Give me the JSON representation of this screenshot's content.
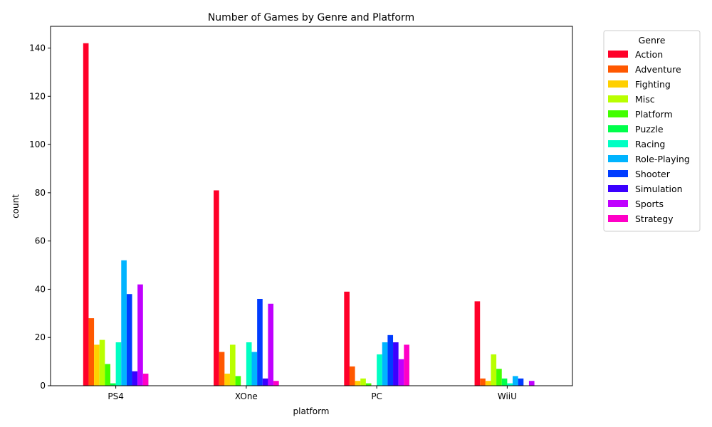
{
  "chart_data": {
    "type": "bar",
    "title": "Number of Games by Genre and Platform",
    "xlabel": "platform",
    "ylabel": "count",
    "categories": [
      "PS4",
      "XOne",
      "PC",
      "WiiU"
    ],
    "ylim": [
      0,
      149
    ],
    "yticks": [
      0,
      20,
      40,
      60,
      80,
      100,
      120,
      140
    ],
    "legend": {
      "title": "Genre",
      "position": "outside-top-right"
    },
    "series": [
      {
        "name": "Action",
        "color": "#ff0029",
        "values": [
          142,
          81,
          39,
          35
        ]
      },
      {
        "name": "Adventure",
        "color": "#ff5800",
        "values": [
          28,
          14,
          8,
          3
        ]
      },
      {
        "name": "Fighting",
        "color": "#ffd000",
        "values": [
          17,
          5,
          2,
          2
        ]
      },
      {
        "name": "Misc",
        "color": "#b9ff00",
        "values": [
          19,
          17,
          3,
          13
        ]
      },
      {
        "name": "Platform",
        "color": "#41ff00",
        "values": [
          9,
          4,
          1,
          7
        ]
      },
      {
        "name": "Puzzle",
        "color": "#00ff4b",
        "values": [
          1,
          0,
          0,
          3
        ]
      },
      {
        "name": "Racing",
        "color": "#00ffc3",
        "values": [
          18,
          18,
          13,
          1
        ]
      },
      {
        "name": "Role-Playing",
        "color": "#00b4ff",
        "values": [
          52,
          14,
          18,
          4
        ]
      },
      {
        "name": "Shooter",
        "color": "#003cff",
        "values": [
          38,
          36,
          21,
          3
        ]
      },
      {
        "name": "Simulation",
        "color": "#3b00ff",
        "values": [
          6,
          3,
          18,
          0
        ]
      },
      {
        "name": "Sports",
        "color": "#c000ff",
        "values": [
          42,
          34,
          11,
          2
        ]
      },
      {
        "name": "Strategy",
        "color": "#ff00c7",
        "values": [
          5,
          2,
          17,
          0
        ]
      }
    ]
  }
}
